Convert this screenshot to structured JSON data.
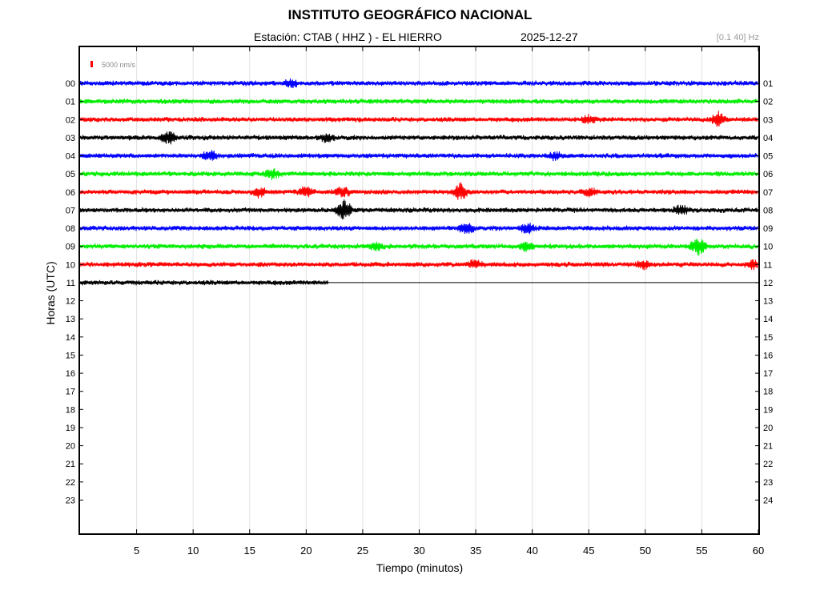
{
  "header": {
    "title": "INSTITUTO GEOGRÁFICO NACIONAL",
    "station": "Estación:  CTAB ( HHZ ) - EL HIERRO",
    "date": "2025-12-27",
    "filter": "[0.1 40] Hz"
  },
  "chart_data": {
    "type": "line",
    "title": "INSTITUTO GEOGRÁFICO NACIONAL",
    "xlabel": "Tiempo (minutos)",
    "ylabel": "Horas (UTC)",
    "xlim": [
      0,
      60
    ],
    "x_ticks": [
      5,
      10,
      15,
      20,
      25,
      30,
      35,
      40,
      45,
      50,
      55,
      60
    ],
    "left_hour_labels": [
      "00",
      "01",
      "02",
      "03",
      "04",
      "05",
      "06",
      "07",
      "08",
      "09",
      "10",
      "11",
      "12",
      "13",
      "14",
      "15",
      "16",
      "17",
      "18",
      "19",
      "20",
      "21",
      "22",
      "23"
    ],
    "right_hour_labels": [
      "01",
      "02",
      "03",
      "04",
      "05",
      "06",
      "07",
      "08",
      "09",
      "10",
      "11",
      "12",
      "13",
      "14",
      "15",
      "16",
      "17",
      "18",
      "19",
      "20",
      "21",
      "22",
      "23",
      "24"
    ],
    "scale_bar": {
      "label": "5000 nm/s",
      "color": "#ff0000"
    },
    "grid": true,
    "trace_colors": [
      "#0000ff",
      "#00ee00",
      "#ff0000",
      "#000000"
    ],
    "traces": [
      {
        "hour": "00",
        "color": "#0000ff",
        "end_minute": 60,
        "events": [
          [
            18.7,
            1.5
          ]
        ]
      },
      {
        "hour": "01",
        "color": "#00ee00",
        "end_minute": 60,
        "events": []
      },
      {
        "hour": "02",
        "color": "#ff0000",
        "end_minute": 60,
        "events": [
          [
            45,
            1.6
          ],
          [
            56.5,
            2.8
          ]
        ]
      },
      {
        "hour": "03",
        "color": "#000000",
        "end_minute": 60,
        "events": [
          [
            7.8,
            2.2
          ],
          [
            21.8,
            1.4
          ]
        ]
      },
      {
        "hour": "04",
        "color": "#0000ff",
        "end_minute": 60,
        "events": [
          [
            11.5,
            1.8
          ],
          [
            42,
            1.3
          ]
        ]
      },
      {
        "hour": "05",
        "color": "#00ee00",
        "end_minute": 60,
        "events": [
          [
            17,
            1.8
          ]
        ]
      },
      {
        "hour": "06",
        "color": "#ff0000",
        "end_minute": 60,
        "events": [
          [
            15.8,
            1.6
          ],
          [
            20,
            1.9
          ],
          [
            23.2,
            1.6
          ],
          [
            33.6,
            3.0
          ],
          [
            45,
            1.4
          ]
        ]
      },
      {
        "hour": "07",
        "color": "#000000",
        "end_minute": 60,
        "events": [
          [
            23.3,
            3.8
          ],
          [
            53.2,
            1.7
          ]
        ]
      },
      {
        "hour": "08",
        "color": "#0000ff",
        "end_minute": 60,
        "events": [
          [
            34.2,
            1.9
          ],
          [
            39.6,
            1.8
          ]
        ]
      },
      {
        "hour": "09",
        "color": "#00ee00",
        "end_minute": 60,
        "events": [
          [
            26.2,
            1.5
          ],
          [
            39.5,
            1.6
          ],
          [
            54.7,
            3.2
          ]
        ]
      },
      {
        "hour": "10",
        "color": "#ff0000",
        "end_minute": 60,
        "events": [
          [
            34.8,
            1.6
          ],
          [
            49.9,
            1.6
          ],
          [
            59.5,
            1.5
          ]
        ]
      },
      {
        "hour": "11",
        "color": "#000000",
        "end_minute": 22,
        "events": []
      }
    ]
  }
}
